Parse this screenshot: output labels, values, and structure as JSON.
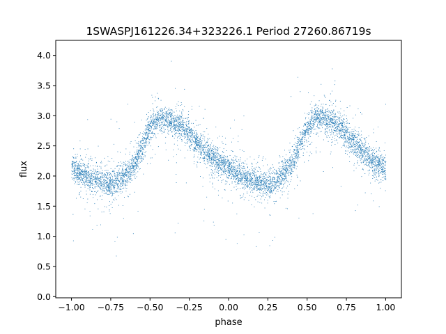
{
  "chart_data": {
    "type": "scatter",
    "title": "1SWASPJ161226.34+323226.1 Period 27260.86719s",
    "xlabel": "phase",
    "ylabel": "flux",
    "xlim": [
      -1.1,
      1.1
    ],
    "ylim": [
      -0.02,
      4.25
    ],
    "xticks": [
      -1.0,
      -0.75,
      -0.5,
      -0.25,
      0.0,
      0.25,
      0.5,
      0.75,
      1.0
    ],
    "xtick_labels": [
      "−1.00",
      "−0.75",
      "−0.50",
      "−0.25",
      "0.00",
      "0.25",
      "0.50",
      "0.75",
      "1.00"
    ],
    "yticks": [
      0.0,
      0.5,
      1.0,
      1.5,
      2.0,
      2.5,
      3.0,
      3.5,
      4.0
    ],
    "ytick_labels": [
      "0.0",
      "0.5",
      "1.0",
      "1.5",
      "2.0",
      "2.5",
      "3.0",
      "3.5",
      "4.0"
    ],
    "grid": false,
    "marker_color": "#1f77b4",
    "series": [
      {
        "phase": [
          -1.0,
          -0.9,
          -0.8,
          -0.75,
          -0.7,
          -0.6,
          -0.5,
          -0.45,
          -0.4,
          -0.35,
          -0.3,
          -0.2,
          -0.1,
          0.0,
          0.1,
          0.2,
          0.25,
          0.3,
          0.4,
          0.5,
          0.55,
          0.6,
          0.65,
          0.7,
          0.8,
          0.9,
          1.0
        ],
        "flux": [
          2.13,
          2.0,
          1.9,
          1.88,
          1.92,
          2.2,
          2.8,
          2.95,
          2.95,
          2.9,
          2.82,
          2.55,
          2.3,
          2.12,
          1.97,
          1.88,
          1.87,
          1.92,
          2.2,
          2.8,
          2.95,
          2.95,
          2.9,
          2.82,
          2.55,
          2.3,
          2.13
        ]
      }
    ]
  }
}
